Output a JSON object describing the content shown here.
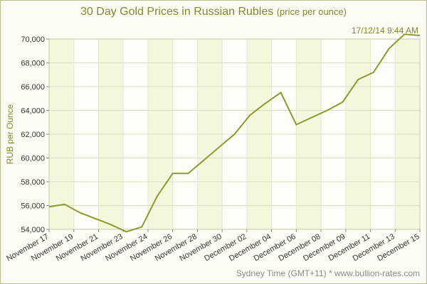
{
  "header": {
    "title": "30 Day Gold Prices in Russian Rubles",
    "subtitle": "(price per ounce)",
    "timestamp": "17/12/14 9:44 AM"
  },
  "footer": {
    "credit": "Sydney Time (GMT+11) * www.bullion-rates.com"
  },
  "colors": {
    "line": "#8b9a2c",
    "title": "#7d8a2e",
    "band": "#f2f4d4"
  },
  "chart_data": {
    "type": "line",
    "title": "30 Day Gold Prices in Russian Rubles",
    "ylabel": "RUB per Ounce",
    "xlabel": "",
    "ylim": [
      54000,
      70000
    ],
    "yticks": [
      54000,
      56000,
      58000,
      60000,
      62000,
      64000,
      66000,
      68000,
      70000
    ],
    "ytick_labels": [
      "54,000",
      "56,000",
      "58,000",
      "60,000",
      "62,000",
      "64,000",
      "66,000",
      "68,000",
      "70,000"
    ],
    "x_tick_labels": [
      "November 17",
      "November 19",
      "November 21",
      "November 23",
      "November 24",
      "November 26",
      "November 28",
      "November 30",
      "December 02",
      "December 04",
      "December 06",
      "December 08",
      "December 09",
      "December 11",
      "December 13",
      "December 15"
    ],
    "x": [
      "Nov 17",
      "Nov 18",
      "Nov 19",
      "Nov 21",
      "Nov 22",
      "Nov 24",
      "Nov 25",
      "Nov 26",
      "Nov 27",
      "Nov 28",
      "Nov 29",
      "Nov 30",
      "Dec 01",
      "Dec 02",
      "Dec 03",
      "Dec 04",
      "Dec 05",
      "Dec 06",
      "Dec 07",
      "Dec 08",
      "Dec 09",
      "Dec 10",
      "Dec 11",
      "Dec 12",
      "Dec 15"
    ],
    "series": [
      {
        "values": [
          55900,
          56100,
          55400,
          54900,
          54400,
          53800,
          54200,
          56800,
          58700,
          58700,
          59800,
          60900,
          62000,
          63600,
          64600,
          65500,
          62800,
          63400,
          64000,
          64700,
          66600,
          67200,
          69200,
          70400,
          70300
        ]
      }
    ],
    "grid": true,
    "legend": "none"
  }
}
